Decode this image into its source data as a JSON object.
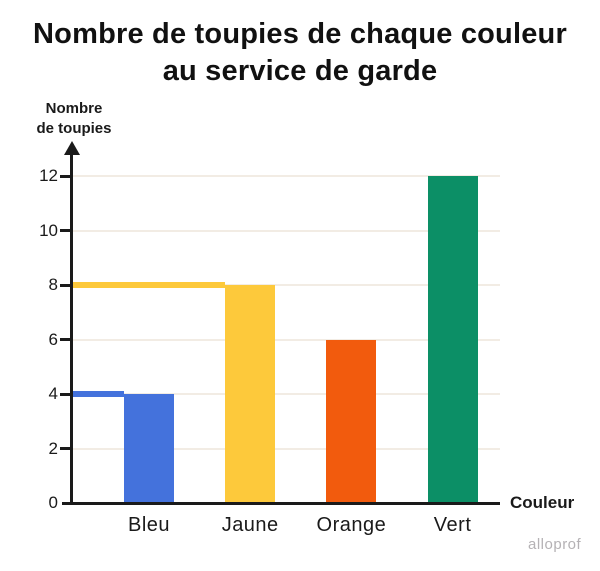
{
  "title": "Nombre de toupies de chaque couleur au service de garde",
  "watermark": "alloprof",
  "chart_data": {
    "type": "bar",
    "categories": [
      "Bleu",
      "Jaune",
      "Orange",
      "Vert"
    ],
    "values": [
      4,
      8,
      6,
      12
    ],
    "bar_colors": [
      "#4472DC",
      "#FDC93B",
      "#F25B0D",
      "#0C8F66"
    ],
    "title": "Nombre de toupies de chaque couleur au service de garde",
    "xlabel": "Couleur",
    "ylabel": "Nombre\nde toupies",
    "yticks": [
      0,
      2,
      4,
      6,
      8,
      10,
      12
    ],
    "ylim": [
      0,
      13
    ],
    "grid": "horizontal",
    "legend": "none",
    "guide_lines": [
      {
        "category": "Bleu",
        "value": 4,
        "color": "#4472DC"
      },
      {
        "category": "Jaune",
        "value": 8,
        "color": "#FDC93B"
      }
    ],
    "colors": {
      "axis": "#1a1a1a",
      "gridline": "#F2ECE4",
      "text": "#1a1a1a"
    }
  }
}
